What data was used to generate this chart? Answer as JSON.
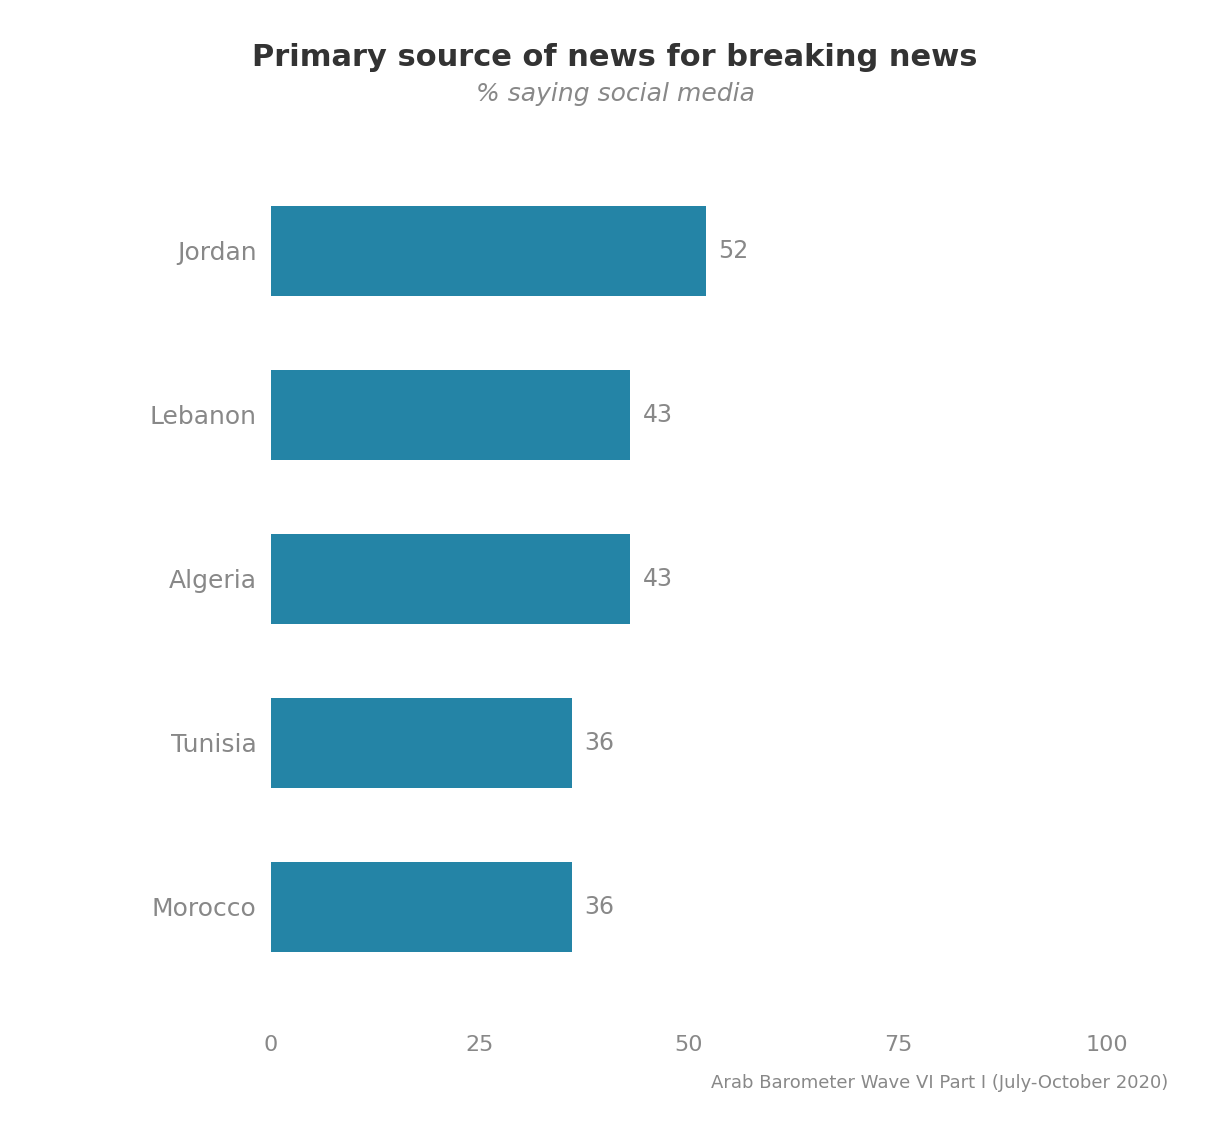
{
  "title": "Primary source of news for breaking news",
  "subtitle": "% saying social media",
  "categories": [
    "Jordan",
    "Lebanon",
    "Algeria",
    "Tunisia",
    "Morocco"
  ],
  "values": [
    52,
    43,
    43,
    36,
    36
  ],
  "bar_color": "#2484a6",
  "xlim": [
    0,
    100
  ],
  "xticks": [
    0,
    25,
    50,
    75,
    100
  ],
  "label_color": "#888888",
  "value_color": "#888888",
  "title_color": "#333333",
  "subtitle_color": "#888888",
  "source_text": "Arab Barometer Wave VI Part I (July-October 2020)",
  "background_color": "#ffffff",
  "title_fontsize": 22,
  "subtitle_fontsize": 18,
  "category_fontsize": 18,
  "value_fontsize": 17,
  "xtick_fontsize": 16,
  "source_fontsize": 13
}
